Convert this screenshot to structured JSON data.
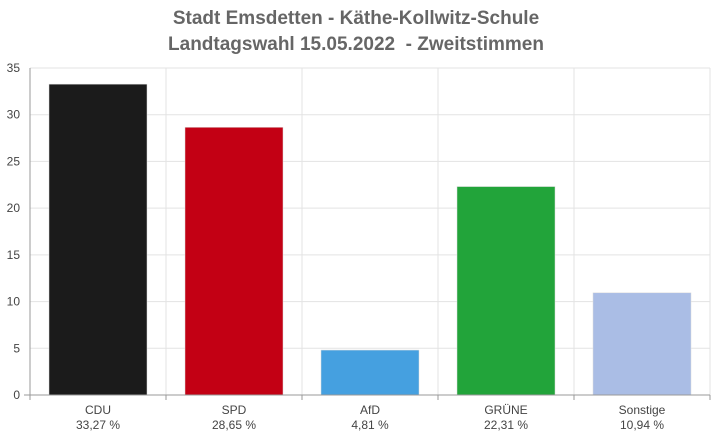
{
  "chart_data": {
    "type": "bar",
    "title": "Stadt Emsdetten - Käthe-Kollwitz-Schule",
    "subtitle": "Landtagswahl 15.05.2022  - Zweitstimmen",
    "categories": [
      "CDU",
      "SPD",
      "AfD",
      "GRÜNE",
      "Sonstige"
    ],
    "value_labels": [
      "33,27 %",
      "28,65 %",
      "4,81 %",
      "22,31 %",
      "10,94 %"
    ],
    "values": [
      33.27,
      28.65,
      4.81,
      22.31,
      10.94
    ],
    "colors": [
      "#1b1b1b",
      "#c30014",
      "#45a0e0",
      "#22a43a",
      "#aabde5"
    ],
    "ylim": [
      0,
      35
    ],
    "yticks": [
      0,
      5,
      10,
      15,
      20,
      25,
      30,
      35
    ],
    "grid": true,
    "legend": "none",
    "xlabel": "",
    "ylabel": ""
  }
}
